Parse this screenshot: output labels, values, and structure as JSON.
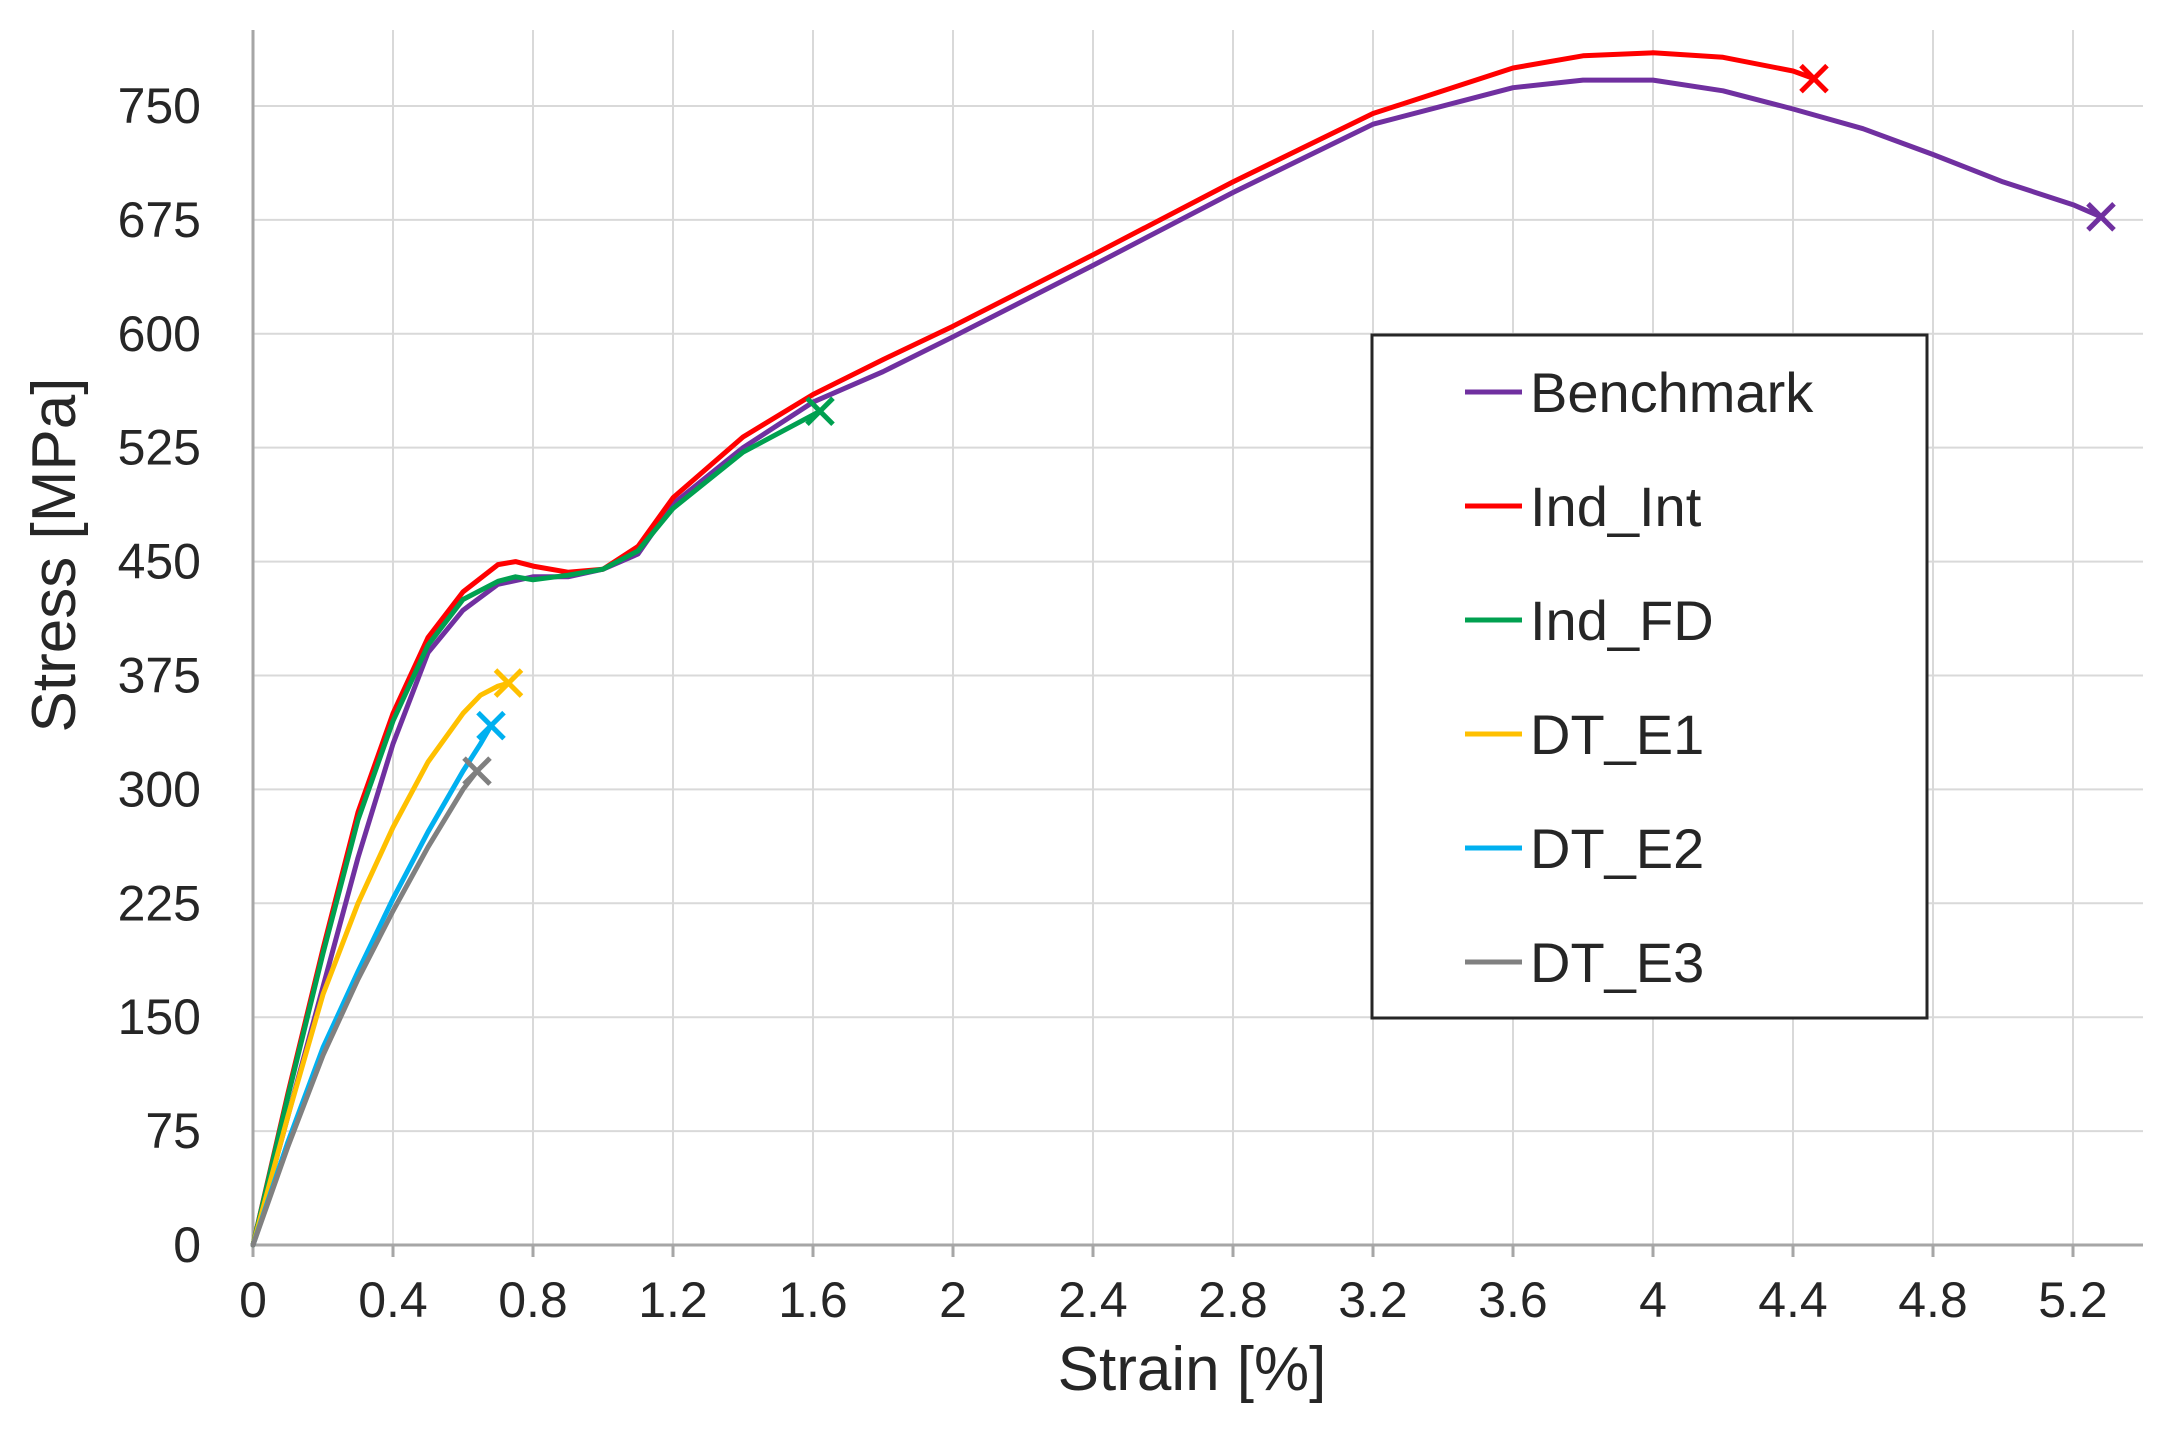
{
  "chart_data": {
    "type": "line",
    "title": "",
    "xlabel": "Strain [%]",
    "ylabel": "Stress [MPa]",
    "xlim": [
      0,
      5.4
    ],
    "ylim": [
      0,
      800
    ],
    "xticks": [
      0,
      0.4,
      0.8,
      1.2,
      1.6,
      2,
      2.4,
      2.8,
      3.2,
      3.6,
      4,
      4.4,
      4.8,
      5.2
    ],
    "xtick_labels": [
      "0",
      "0.4",
      "0.8",
      "1.2",
      "1.6",
      "2",
      "2.4",
      "2.8",
      "3.2",
      "3.6",
      "4",
      "4.4",
      "4.8",
      "5.2"
    ],
    "yticks": [
      0,
      75,
      150,
      225,
      300,
      375,
      450,
      525,
      600,
      675,
      750
    ],
    "ytick_labels": [
      "0",
      "75",
      "150",
      "225",
      "300",
      "375",
      "450",
      "525",
      "600",
      "675",
      "750"
    ],
    "grid": true,
    "legend_position": "right",
    "series": [
      {
        "name": "Benchmark",
        "color": "#7030A0",
        "end_marker": "x",
        "x": [
          0,
          0.1,
          0.2,
          0.3,
          0.4,
          0.5,
          0.6,
          0.7,
          0.8,
          0.9,
          1.0,
          1.1,
          1.2,
          1.4,
          1.6,
          1.8,
          2.0,
          2.4,
          2.8,
          3.2,
          3.6,
          3.8,
          4.0,
          4.2,
          4.4,
          4.6,
          4.8,
          5.0,
          5.2,
          5.28
        ],
        "y": [
          0,
          85,
          170,
          255,
          330,
          390,
          418,
          435,
          440,
          440,
          445,
          455,
          488,
          525,
          555,
          575,
          598,
          645,
          693,
          738,
          762,
          767,
          767,
          760,
          748,
          735,
          718,
          700,
          685,
          677
        ]
      },
      {
        "name": "Ind_Int",
        "color": "#FF0000",
        "end_marker": "x",
        "x": [
          0,
          0.1,
          0.2,
          0.3,
          0.4,
          0.5,
          0.6,
          0.7,
          0.75,
          0.8,
          0.9,
          1.0,
          1.1,
          1.2,
          1.4,
          1.6,
          1.8,
          2.0,
          2.4,
          2.8,
          3.2,
          3.6,
          3.8,
          4.0,
          4.2,
          4.4,
          4.46
        ],
        "y": [
          0,
          100,
          195,
          285,
          350,
          400,
          430,
          448,
          450,
          447,
          443,
          445,
          460,
          492,
          532,
          560,
          583,
          605,
          652,
          700,
          745,
          775,
          783,
          785,
          782,
          773,
          768
        ]
      },
      {
        "name": "Ind_FD",
        "color": "#00A050",
        "end_marker": "x",
        "x": [
          0,
          0.1,
          0.2,
          0.3,
          0.4,
          0.5,
          0.6,
          0.7,
          0.75,
          0.8,
          0.9,
          1.0,
          1.1,
          1.2,
          1.4,
          1.62
        ],
        "y": [
          0,
          98,
          192,
          280,
          345,
          395,
          425,
          437,
          440,
          438,
          441,
          445,
          457,
          485,
          522,
          549
        ]
      },
      {
        "name": "DT_E1",
        "color": "#FFC000",
        "end_marker": "x",
        "x": [
          0,
          0.1,
          0.2,
          0.3,
          0.4,
          0.5,
          0.6,
          0.65,
          0.7,
          0.73
        ],
        "y": [
          0,
          85,
          165,
          225,
          275,
          318,
          350,
          362,
          368,
          370
        ]
      },
      {
        "name": "DT_E2",
        "color": "#00B0F0",
        "end_marker": "x",
        "x": [
          0,
          0.1,
          0.2,
          0.3,
          0.4,
          0.5,
          0.6,
          0.65,
          0.68
        ],
        "y": [
          0,
          68,
          130,
          180,
          228,
          272,
          312,
          330,
          342
        ]
      },
      {
        "name": "DT_E3",
        "color": "#808080",
        "end_marker": "x",
        "x": [
          0,
          0.1,
          0.2,
          0.3,
          0.4,
          0.5,
          0.6,
          0.64
        ],
        "y": [
          0,
          65,
          125,
          175,
          220,
          262,
          300,
          312
        ]
      }
    ]
  }
}
